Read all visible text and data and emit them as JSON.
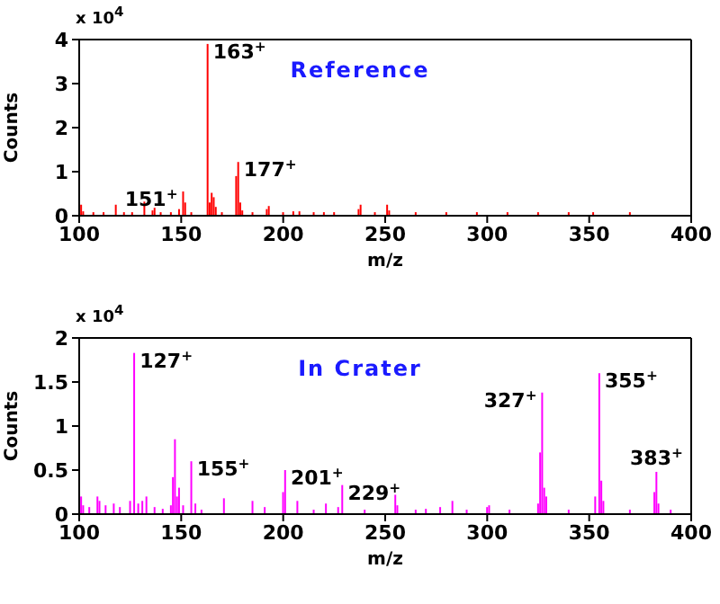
{
  "chart_data": [
    {
      "type": "bar",
      "title": "Reference",
      "xlabel": "m/z",
      "ylabel": "Counts",
      "xlim": [
        100,
        400
      ],
      "xticks": [
        100,
        150,
        200,
        250,
        300,
        350,
        400
      ],
      "ylim": [
        0,
        4
      ],
      "yticks": [
        0,
        1,
        2,
        3,
        4
      ],
      "grid": false,
      "legend": false,
      "x": [
        101,
        102,
        107,
        112,
        118,
        122,
        126,
        132,
        136,
        137,
        140,
        145,
        149,
        151,
        152,
        155,
        163,
        164,
        165,
        166,
        167,
        170,
        177,
        178,
        179,
        180,
        185,
        192,
        193,
        200,
        205,
        208,
        215,
        220,
        225,
        237,
        238,
        245,
        251,
        252,
        265,
        280,
        295,
        310,
        325,
        340,
        352,
        370
      ],
      "series": [
        {
          "color": "#ff0000",
          "values": [
            0.25,
            0.1,
            0.08,
            0.08,
            0.25,
            0.08,
            0.08,
            0.32,
            0.12,
            0.18,
            0.08,
            0.08,
            0.15,
            0.55,
            0.3,
            0.08,
            3.9,
            0.3,
            0.52,
            0.42,
            0.2,
            0.08,
            0.9,
            1.22,
            0.3,
            0.12,
            0.08,
            0.15,
            0.22,
            0.08,
            0.1,
            0.1,
            0.08,
            0.08,
            0.08,
            0.15,
            0.25,
            0.08,
            0.25,
            0.12,
            0.08,
            0.08,
            0.08,
            0.08,
            0.08,
            0.08,
            0.08,
            0.08
          ]
        }
      ],
      "annotations": [
        "x 10$^{4}$",
        {
          "text": "151$^{+}$",
          "x": 151,
          "y": 0.55
        },
        {
          "text": "163$^{+}$",
          "x": 163,
          "y": 3.9
        },
        {
          "text": "177$^{+}$",
          "x": 178,
          "y": 1.22
        }
      ]
    },
    {
      "type": "bar",
      "title": "In Crater",
      "xlabel": "m/z",
      "ylabel": "Counts",
      "xlim": [
        100,
        400
      ],
      "xticks": [
        100,
        150,
        200,
        250,
        300,
        350,
        400
      ],
      "ylim": [
        0,
        2
      ],
      "yticks": [
        0,
        0.5,
        1,
        1.5,
        2
      ],
      "grid": false,
      "legend": false,
      "x": [
        101,
        102,
        105,
        109,
        110,
        113,
        117,
        120,
        125,
        127,
        129,
        131,
        133,
        137,
        141,
        145,
        146,
        147,
        148,
        149,
        151,
        155,
        157,
        160,
        171,
        185,
        191,
        200,
        201,
        207,
        215,
        221,
        227,
        229,
        240,
        255,
        256,
        265,
        270,
        277,
        283,
        290,
        300,
        301,
        311,
        325,
        326,
        327,
        328,
        329,
        340,
        353,
        355,
        356,
        357,
        370,
        382,
        383,
        384,
        390
      ],
      "series": [
        {
          "color": "#ff00ff",
          "values": [
            0.2,
            0.1,
            0.08,
            0.2,
            0.15,
            0.1,
            0.12,
            0.08,
            0.15,
            1.83,
            0.12,
            0.15,
            0.2,
            0.08,
            0.06,
            0.1,
            0.42,
            0.85,
            0.2,
            0.3,
            0.1,
            0.6,
            0.12,
            0.05,
            0.18,
            0.15,
            0.08,
            0.25,
            0.5,
            0.15,
            0.05,
            0.12,
            0.08,
            0.33,
            0.05,
            0.22,
            0.1,
            0.05,
            0.06,
            0.08,
            0.15,
            0.05,
            0.08,
            0.1,
            0.05,
            0.12,
            0.7,
            1.38,
            0.3,
            0.2,
            0.05,
            0.2,
            1.6,
            0.38,
            0.15,
            0.05,
            0.25,
            0.48,
            0.12,
            0.05
          ]
        }
      ],
      "annotations": [
        "x 10$^{4}$",
        {
          "text": "127$^{+}$",
          "x": 127,
          "y": 1.83
        },
        {
          "text": "155$^{+}$",
          "x": 155,
          "y": 0.6
        },
        {
          "text": "201$^{+}$",
          "x": 201,
          "y": 0.5
        },
        {
          "text": "229$^{+}$",
          "x": 229,
          "y": 0.33
        },
        {
          "text": "327$^{+}$",
          "x": 327,
          "y": 1.38
        },
        {
          "text": "355$^{+}$",
          "x": 355,
          "y": 1.6
        },
        {
          "text": "383$^{+}$",
          "x": 383,
          "y": 0.48
        }
      ]
    }
  ]
}
